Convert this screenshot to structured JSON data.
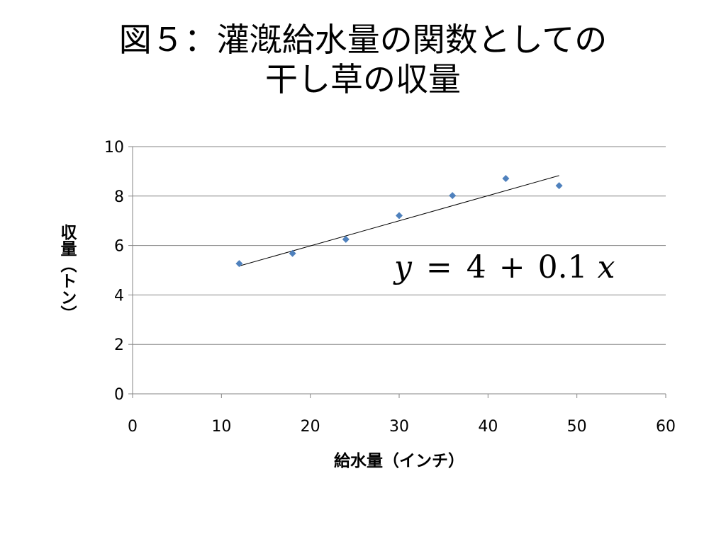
{
  "slide": {
    "title_line1": "図５：灌漑給水量の関数としての",
    "title_line2": "干し草の収量"
  },
  "chart_data": {
    "type": "scatter",
    "title": "",
    "xlabel": "給水量（インチ）",
    "ylabel": "収量（トン）",
    "xlim": [
      0,
      60
    ],
    "ylim": [
      0,
      10
    ],
    "x_ticks": [
      0,
      10,
      20,
      30,
      40,
      50,
      60
    ],
    "y_ticks": [
      0,
      2,
      4,
      6,
      8,
      10
    ],
    "grid": "horizontal",
    "legend": "none",
    "marker_color": "#4F81BD",
    "gridline_color": "#868686",
    "series": [
      {
        "x": [
          12,
          18,
          24,
          30,
          36,
          42,
          48
        ],
        "y": [
          5.27,
          5.68,
          6.25,
          7.21,
          8.02,
          8.71,
          8.42
        ]
      }
    ],
    "trendline": {
      "type": "linear",
      "x_range": [
        12,
        48
      ],
      "intercept": 4.0,
      "slope": 0.1,
      "color": "#000000"
    },
    "annotation": {
      "equation_y": "y",
      "equation_eq": "=",
      "equation_const": "4",
      "equation_plus": "+",
      "equation_coef": "0.1",
      "equation_x": "x"
    }
  }
}
